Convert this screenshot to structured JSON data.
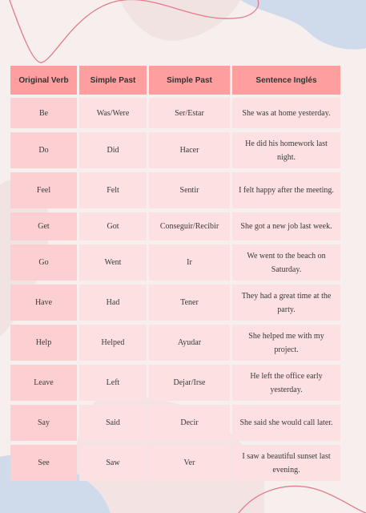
{
  "table": {
    "headers": [
      "Original Verb",
      "Simple Past",
      "Simple Past",
      "Sentence  Inglés"
    ],
    "rows": [
      [
        "Be",
        "Was/Were",
        "Ser/Estar",
        "She was at home yesterday."
      ],
      [
        "Do",
        "Did",
        "Hacer",
        "He did his homework last night."
      ],
      [
        "Feel",
        "Felt",
        "Sentir",
        "I felt happy after the meeting."
      ],
      [
        "Get",
        "Got",
        "Conseguir/Recibir",
        "She got a new job last week."
      ],
      [
        "Go",
        "Went",
        "Ir",
        "We went to the beach on Saturday."
      ],
      [
        "Have",
        "Had",
        "Tener",
        "They had a great time at the party."
      ],
      [
        "Help",
        "Helped",
        "Ayudar",
        "She helped me with my project."
      ],
      [
        "Leave",
        "Left",
        "Dejar/Irse",
        "He left the office early yesterday."
      ],
      [
        "Say",
        "Said",
        "Decir",
        "She said she would call later."
      ],
      [
        "See",
        "Saw",
        "Ver",
        "I saw a beautiful sunset last evening."
      ]
    ]
  },
  "colors": {
    "background": "#f6efee",
    "header": "#ff9e9e",
    "cell": "#fde0e1",
    "accent_line": "#e27c8a",
    "blob_blue": "#cfdaea"
  }
}
